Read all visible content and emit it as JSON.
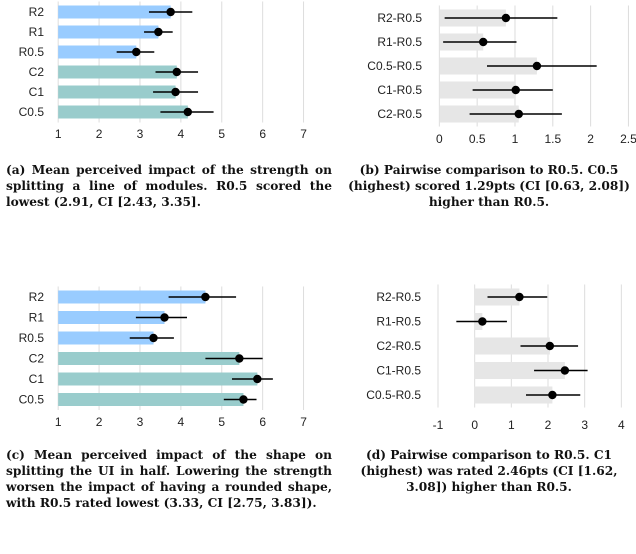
{
  "chart_data": [
    {
      "type": "bar",
      "categories": [
        "R2",
        "R1",
        "R0.5",
        "C2",
        "C1",
        "C0.5"
      ],
      "values": [
        3.75,
        3.45,
        2.91,
        3.9,
        3.87,
        4.17
      ],
      "ci_low": [
        3.22,
        3.1,
        2.43,
        3.38,
        3.32,
        3.5
      ],
      "ci_high": [
        4.28,
        3.8,
        3.35,
        4.42,
        4.42,
        4.8
      ],
      "orientation": "horizontal",
      "xlim": [
        0.8,
        7.5
      ],
      "xticks": [
        "1",
        "2",
        "3",
        "4",
        "5",
        "6",
        "7"
      ],
      "grid": true,
      "colors": {
        "R": "#99CCFF",
        "C": "#99CCCC",
        "point": "#000000"
      },
      "caption": "(a) Mean perceived impact of the strength on splitting a line of modules. R0.5 scored the lowest (2.91, CI [2.43, 3.35]."
    },
    {
      "type": "bar",
      "categories": [
        "R2-R0.5",
        "R1-R0.5",
        "C0.5-R0.5",
        "C1-R0.5",
        "C2-R0.5"
      ],
      "values": [
        0.88,
        0.58,
        1.29,
        1.01,
        1.05
      ],
      "ci_low": [
        0.07,
        0.05,
        0.63,
        0.44,
        0.4
      ],
      "ci_high": [
        1.56,
        1.02,
        2.08,
        1.5,
        1.62
      ],
      "orientation": "horizontal",
      "xlim": [
        -0.15,
        2.6
      ],
      "xticks": [
        "0",
        "0.5",
        "1",
        "1.5",
        "2",
        "2.5"
      ],
      "grid": true,
      "colors": {
        "bar": "#E6E6E6",
        "point": "#000000"
      },
      "caption": "(b) Pairwise comparison to R0.5. C0.5 (highest) scored 1.29pts (CI [0.63, 2.08]) higher than R0.5."
    },
    {
      "type": "bar",
      "categories": [
        "R2",
        "R1",
        "R0.5",
        "C2",
        "C1",
        "C0.5"
      ],
      "values": [
        4.6,
        3.6,
        3.33,
        5.43,
        5.87,
        5.53
      ],
      "ci_low": [
        3.7,
        2.9,
        2.75,
        4.6,
        5.25,
        5.05
      ],
      "ci_high": [
        5.35,
        4.15,
        3.83,
        6.0,
        6.25,
        5.85
      ],
      "orientation": "horizontal",
      "xlim": [
        0.8,
        7.5
      ],
      "xticks": [
        "1",
        "2",
        "3",
        "4",
        "5",
        "6",
        "7"
      ],
      "grid": true,
      "colors": {
        "R": "#99CCFF",
        "C": "#99CCCC",
        "point": "#000000"
      },
      "caption": "(c) Mean perceived impact of the shape on splitting the UI in half. Lowering the strength worsen the impact of having a rounded shape, with R0.5 rated lowest (3.33, CI [2.75, 3.83])."
    },
    {
      "type": "bar",
      "categories": [
        "R2-R0.5",
        "R1-R0.5",
        "C2-R0.5",
        "C1-R0.5",
        "C0.5-R0.5"
      ],
      "values": [
        1.22,
        0.21,
        2.05,
        2.46,
        2.12
      ],
      "ci_low": [
        0.35,
        -0.5,
        1.25,
        1.62,
        1.4
      ],
      "ci_high": [
        1.98,
        0.88,
        2.82,
        3.08,
        2.88
      ],
      "orientation": "horizontal",
      "xlim": [
        -1.3,
        4.4
      ],
      "xticks": [
        "-1",
        "0",
        "1",
        "2",
        "3",
        "4"
      ],
      "grid": true,
      "colors": {
        "bar": "#E6E6E6",
        "point": "#000000"
      },
      "caption": "(d) Pairwise comparison to R0.5. C1 (highest) was rated 2.46pts (CI [1.62, 3.08]) higher than R0.5."
    }
  ]
}
